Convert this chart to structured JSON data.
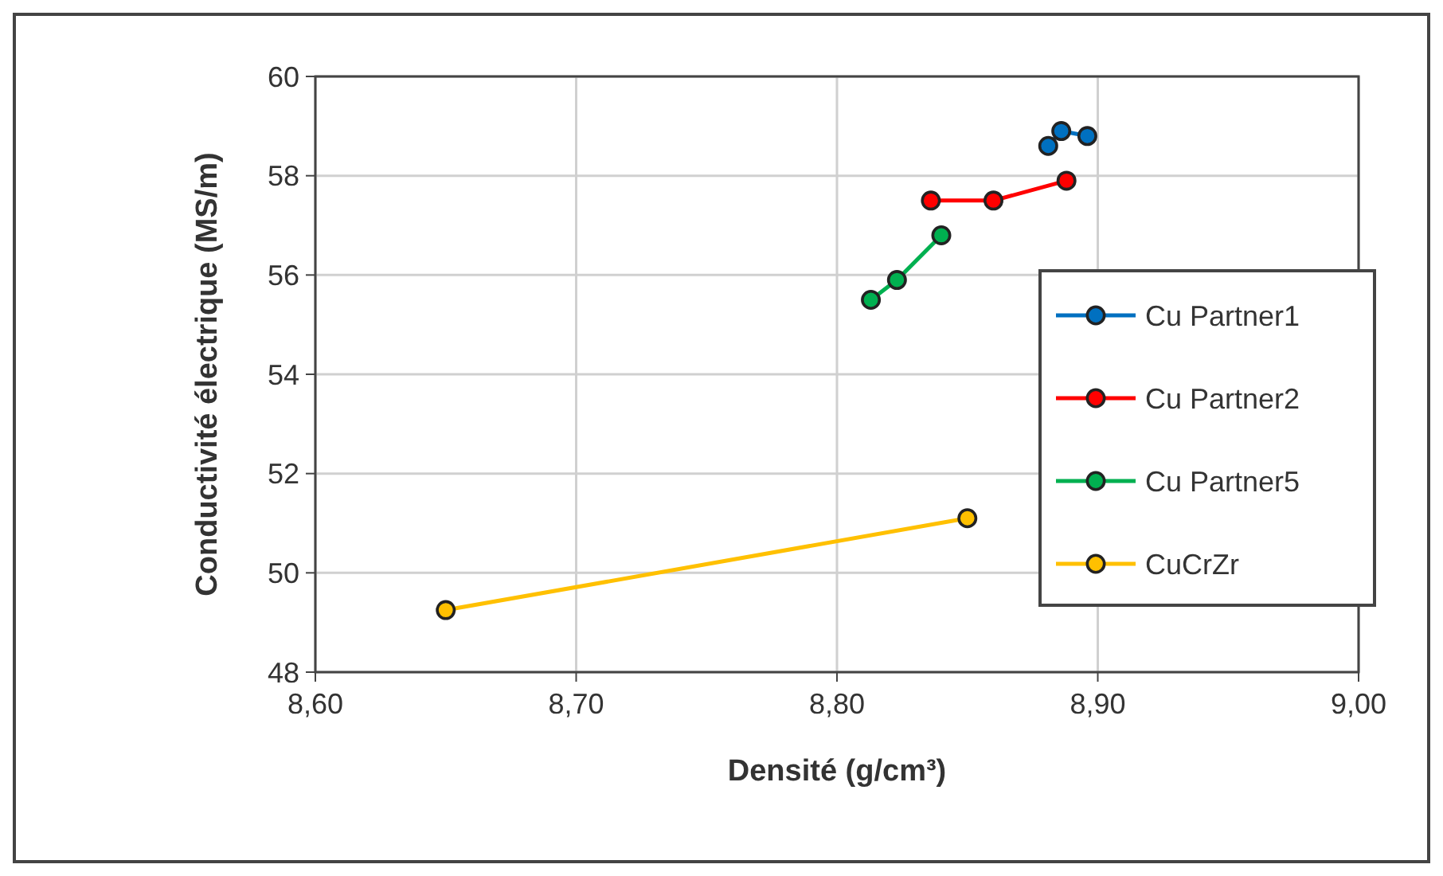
{
  "chart_data": {
    "type": "line",
    "xlabel": "Densité (g/cm³)",
    "ylabel": "Conductivité électrique (MS/m)",
    "xlim": [
      8.6,
      9.0
    ],
    "xticks": [
      {
        "value": 8.6,
        "label": "8,60"
      },
      {
        "value": 8.7,
        "label": "8,70"
      },
      {
        "value": 8.8,
        "label": "8,80"
      },
      {
        "value": 8.9,
        "label": "8,90"
      },
      {
        "value": 9.0,
        "label": "9,00"
      }
    ],
    "ylim": [
      48,
      60
    ],
    "yticks": [
      48,
      50,
      52,
      54,
      56,
      58,
      60
    ],
    "grid": true,
    "marker": "circle",
    "legend": "right",
    "series": [
      {
        "name": "Cu Partner1",
        "color": "#0070c0",
        "x": [
          8.881,
          8.886,
          8.896
        ],
        "values": [
          58.6,
          58.9,
          58.8
        ]
      },
      {
        "name": "Cu Partner2",
        "color": "#ff0000",
        "x": [
          8.836,
          8.86,
          8.888
        ],
        "values": [
          57.5,
          57.5,
          57.9
        ]
      },
      {
        "name": "Cu Partner5",
        "color": "#00b050",
        "x": [
          8.813,
          8.823,
          8.84
        ],
        "values": [
          55.5,
          55.9,
          56.8
        ]
      },
      {
        "name": "CuCrZr",
        "color": "#ffc000",
        "x": [
          8.65,
          8.85
        ],
        "values": [
          49.25,
          51.1
        ]
      }
    ]
  }
}
